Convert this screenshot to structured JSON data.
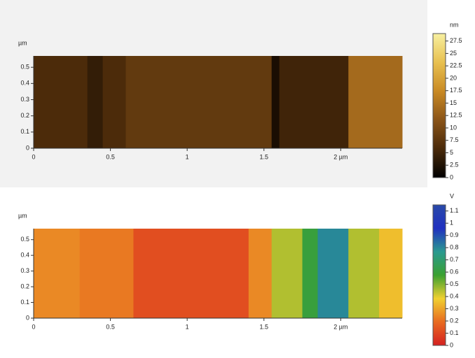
{
  "chart_data": [
    {
      "type": "strip-map",
      "y_label": "µm",
      "colorbar_label": "nm",
      "bins": [
        0,
        0.35,
        0.45,
        0.6,
        1.55,
        1.6,
        2.05,
        2.4
      ],
      "values": [
        6,
        4,
        6,
        8,
        2,
        5,
        14
      ],
      "xlim": [
        0,
        2.4
      ],
      "xticks": [
        0,
        0.5,
        1,
        1.5,
        {
          "value": 2,
          "label": "2 µm"
        }
      ],
      "ylim": [
        0,
        0.57
      ],
      "yticks": [
        0,
        0.1,
        0.2,
        0.3,
        0.4,
        0.5
      ],
      "zlim": [
        0,
        29
      ],
      "zticks": [
        0,
        2.5,
        5,
        7.5,
        10,
        12.5,
        15,
        17.5,
        20,
        22.5,
        25,
        27.5
      ],
      "colors": [
        "#000000",
        "#4a2a0a",
        "#8a5418",
        "#c98a24",
        "#e8c050",
        "#f7f0a0"
      ]
    },
    {
      "type": "strip-map",
      "y_label": "µm",
      "colorbar_label": "V",
      "bins": [
        0,
        0.3,
        0.65,
        1.4,
        1.55,
        1.75,
        1.85,
        2.05,
        2.25,
        2.4
      ],
      "values": [
        0.25,
        0.22,
        0.12,
        0.25,
        0.45,
        0.6,
        0.8,
        0.45,
        0.35
      ],
      "xlim": [
        0,
        2.4
      ],
      "xticks": [
        0,
        0.5,
        1,
        1.5,
        {
          "value": 2,
          "label": "2 µm"
        }
      ],
      "ylim": [
        0,
        0.57
      ],
      "yticks": [
        0,
        0.1,
        0.2,
        0.3,
        0.4,
        0.5
      ],
      "zlim": [
        0,
        1.15
      ],
      "zticks": [
        0,
        0.1,
        0.2,
        0.3,
        0.4,
        0.5,
        0.6,
        0.7,
        0.8,
        0.9,
        1,
        1.1
      ],
      "colors": [
        "#d42020",
        "#e86a20",
        "#f0d030",
        "#3aa030",
        "#2a9a90",
        "#2030c0",
        "#2a4aa8"
      ]
    }
  ]
}
